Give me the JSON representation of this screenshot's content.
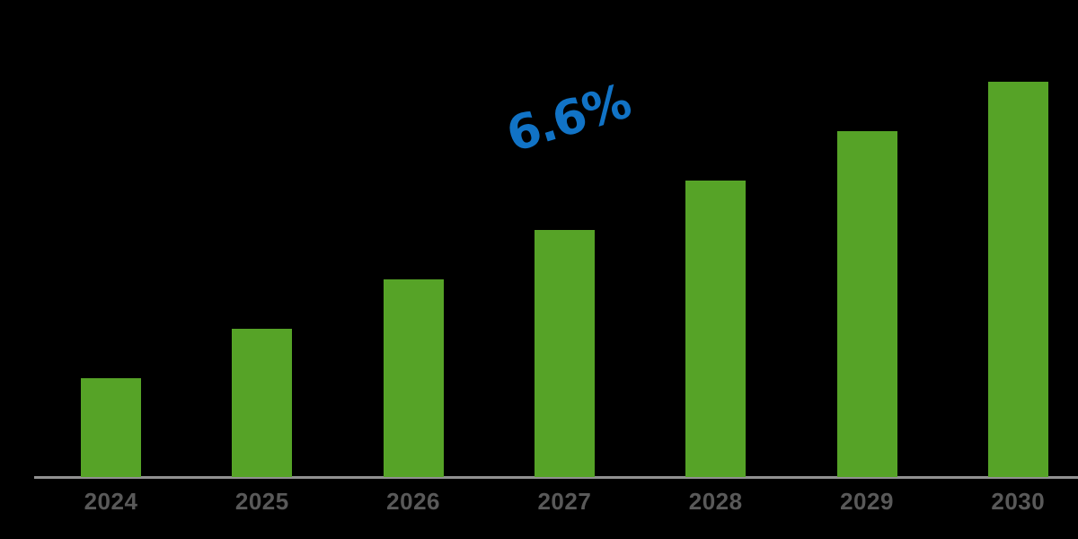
{
  "chart_data": {
    "type": "bar",
    "title": "",
    "xlabel": "",
    "ylabel": "",
    "categories": [
      "2024",
      "2025",
      "2026",
      "2027",
      "2028",
      "2029",
      "2030"
    ],
    "values": [
      2,
      3,
      4,
      5,
      6,
      7,
      8
    ],
    "value_units": "relative height units (no y-axis or value labels shown; bars increase linearly)",
    "grid": "off",
    "legend": "none",
    "background_color": "#000000",
    "bar_color": "#56A327",
    "axis_line_color": "#919191",
    "tick_label_color": "#595959",
    "annotation": {
      "label": "6.6%",
      "meaning": "growth-rate callout",
      "color": "#1173C6",
      "rotation_deg": -17
    }
  }
}
